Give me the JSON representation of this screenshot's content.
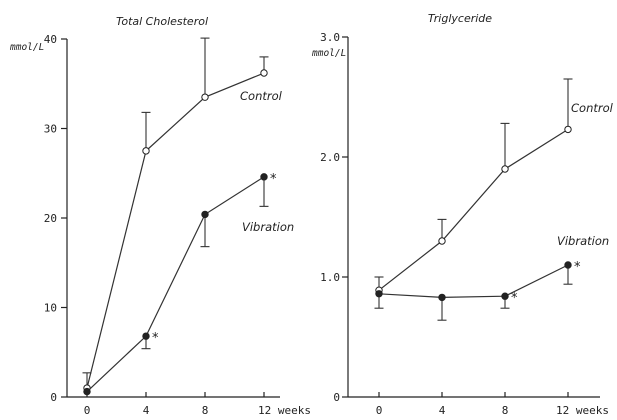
{
  "chart_data": [
    {
      "type": "line",
      "title": "Total Cholesterol",
      "ylabel": "mmol/L",
      "x": [
        0,
        4,
        8,
        12
      ],
      "x_tick_labels": [
        "0",
        "4",
        "8",
        "12 weeks"
      ],
      "xlim": [
        0,
        12
      ],
      "ylim": [
        0,
        40
      ],
      "y_ticks": [
        0,
        10,
        20,
        30,
        40
      ],
      "y_tick_labels": [
        "0",
        "10",
        "20",
        "30",
        "40"
      ],
      "grid": false,
      "series": [
        {
          "name": "Control",
          "marker": "open-circle",
          "y": [
            1.0,
            27.5,
            33.5,
            36.2
          ],
          "err": [
            1.7,
            4.3,
            6.6,
            1.8
          ],
          "err_dir": "up",
          "significant": [
            false,
            false,
            false,
            false
          ]
        },
        {
          "name": "Vibration",
          "marker": "filled-circle",
          "y": [
            0.6,
            6.8,
            20.4,
            24.6
          ],
          "err": [
            0,
            1.4,
            3.6,
            3.3
          ],
          "err_dir": "down",
          "significant": [
            false,
            true,
            false,
            true
          ]
        }
      ]
    },
    {
      "type": "line",
      "title": "Triglyceride",
      "ylabel": "mmol/L",
      "x": [
        0,
        4,
        8,
        12
      ],
      "x_tick_labels": [
        "0",
        "4",
        "8",
        "12 weeks"
      ],
      "xlim": [
        0,
        12
      ],
      "ylim": [
        0,
        3
      ],
      "y_ticks": [
        0,
        1,
        2,
        3
      ],
      "y_tick_labels": [
        "0",
        "1.0",
        "2.0",
        "3.0"
      ],
      "grid": false,
      "series": [
        {
          "name": "Control",
          "marker": "open-circle",
          "y": [
            0.89,
            1.3,
            1.9,
            2.23
          ],
          "err": [
            0.11,
            0.18,
            0.38,
            0.42
          ],
          "err_dir": "up",
          "significant": [
            false,
            false,
            false,
            false
          ]
        },
        {
          "name": "Vibration",
          "marker": "filled-circle",
          "y": [
            0.86,
            0.83,
            0.84,
            1.1
          ],
          "err": [
            0.12,
            0.19,
            0.1,
            0.16
          ],
          "err_dir": "down",
          "significant": [
            false,
            false,
            true,
            true
          ]
        }
      ]
    }
  ],
  "annotations": {
    "significance_mark": "*"
  }
}
